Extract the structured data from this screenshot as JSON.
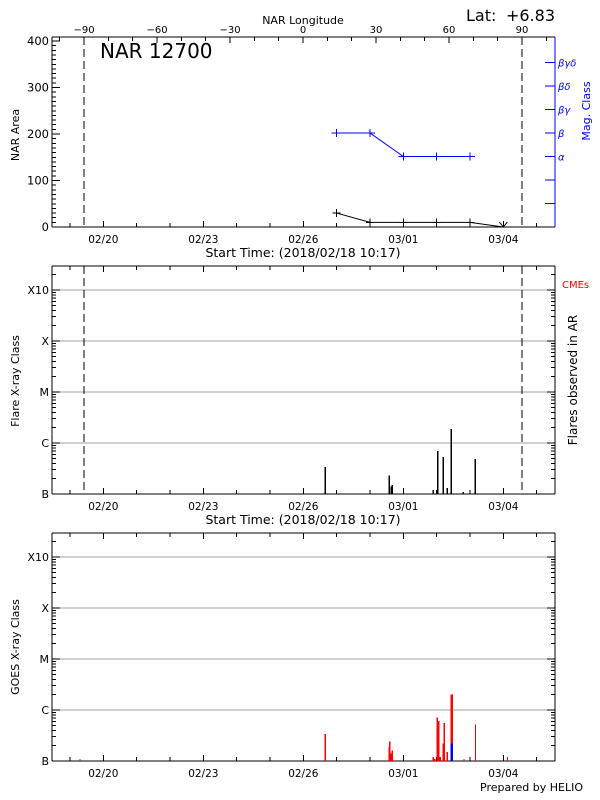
{
  "colors": {
    "axis": "#000000",
    "grid": "#a0a0a0",
    "mag_class": "#0000ff",
    "goes_bar": "#ff0000",
    "flare_bar": "#000000",
    "cme_legend": "#ff0000"
  },
  "figure": {
    "footer": "Prepared by HELIO"
  },
  "chart_data": [
    {
      "type": "line",
      "title": "NAR 12700",
      "annotation": {
        "label": "Lat:",
        "value": "+6.83"
      },
      "top_axis": {
        "label": "NAR Longitude",
        "tick_labels": [
          "-90",
          "-60",
          "-30",
          "0",
          "30",
          "60",
          "90"
        ]
      },
      "xlabel": "Start Time: (2018/02/18 10:17)",
      "x_tick_labels": [
        "02/20",
        "02/23",
        "02/26",
        "03/01",
        "03/04"
      ],
      "ylabel": "NAR Area",
      "ylim": [
        0,
        400
      ],
      "yticks": [
        0,
        100,
        200,
        300,
        400
      ],
      "y2label": "Mag. Class",
      "y2_tick_labels": [
        "α",
        "β",
        "βγ",
        "βδ",
        "βγδ"
      ],
      "limb_crossings": [
        "02/19 10:00",
        "03/04 13:30"
      ],
      "grid": false,
      "series": [
        {
          "name": "NAR Area",
          "color": "#000000",
          "x": [
            "02/27 00:00",
            "02/28 00:00",
            "03/01 00:00",
            "03/02 00:00",
            "03/03 00:00",
            "03/04 00:00"
          ],
          "values": [
            30,
            10,
            10,
            10,
            10,
            0
          ],
          "markers": [
            "+",
            "+",
            "+",
            "+",
            "+",
            "v"
          ]
        },
        {
          "name": "Mag. Class",
          "color": "#0000ff",
          "x": [
            "02/27 00:00",
            "02/28 00:00",
            "03/01 00:00",
            "03/02 00:00",
            "03/03 00:00"
          ],
          "values": [
            "β",
            "β",
            "α",
            "α",
            "α"
          ]
        }
      ]
    },
    {
      "type": "bar",
      "ylabel": "Flare X-ray Class",
      "y2label": "Flares observed in AR",
      "legend": [
        {
          "label": "CMEs",
          "color": "#ff0000"
        }
      ],
      "ytick_labels": [
        "B",
        "C",
        "M",
        "X",
        "X10"
      ],
      "xlabel": "Start Time: (2018/02/18 10:17)",
      "x_tick_labels": [
        "02/20",
        "02/23",
        "02/26",
        "03/01",
        "03/04"
      ],
      "limb_crossings": [
        "02/19 10:00",
        "03/04 13:30"
      ],
      "grid": true,
      "bar_color": "#000000",
      "events": [
        {
          "time": "02/26 15:50",
          "class": "B3.4"
        },
        {
          "time": "02/28 13:55",
          "class": "B2.3"
        },
        {
          "time": "02/28 15:20",
          "class": "B1.4"
        },
        {
          "time": "02/28 16:05",
          "class": "B1.5"
        },
        {
          "time": "03/01 21:40",
          "class": "B1.2"
        },
        {
          "time": "03/02 00:50",
          "class": "B6.9"
        },
        {
          "time": "03/02 04:50",
          "class": "B5.3"
        },
        {
          "time": "03/02 07:40",
          "class": "B1.3"
        },
        {
          "time": "03/02 10:35",
          "class": "C1.9"
        },
        {
          "time": "03/02 19:10",
          "class": "B1.1"
        },
        {
          "time": "03/03 03:50",
          "class": "B4.9"
        }
      ]
    },
    {
      "type": "bar",
      "ylabel": "GOES X-ray Class",
      "ytick_labels": [
        "B",
        "C",
        "M",
        "X",
        "X10"
      ],
      "x_tick_labels": [
        "02/20",
        "02/23",
        "02/26",
        "03/01",
        "03/04"
      ],
      "grid": true,
      "bar_color": "#ff0000",
      "events": [
        {
          "time": "02/19 07:10",
          "class": "B1.1"
        },
        {
          "time": "02/26 15:50",
          "class": "B3.4"
        },
        {
          "time": "02/28 13:50",
          "class": "B1.9"
        },
        {
          "time": "02/28 14:20",
          "class": "B2.4"
        },
        {
          "time": "02/28 15:15",
          "class": "B1.4"
        },
        {
          "time": "02/28 16:00",
          "class": "B1.6"
        },
        {
          "time": "03/01 21:40",
          "class": "B1.2"
        },
        {
          "time": "03/01 22:30",
          "class": "B1.1"
        },
        {
          "time": "03/02 00:30",
          "class": "B7.1"
        },
        {
          "time": "03/02 01:30",
          "class": "B6.1"
        },
        {
          "time": "03/02 02:30",
          "class": "B1.2"
        },
        {
          "time": "03/02 04:50",
          "class": "B2.2"
        },
        {
          "time": "03/02 05:30",
          "class": "B5.5"
        },
        {
          "time": "03/02 07:40",
          "class": "B1.5"
        },
        {
          "time": "03/02 10:35",
          "class": "C2.0"
        },
        {
          "time": "03/02 11:20",
          "class": "C2.0"
        },
        {
          "time": "03/02 19:40",
          "class": "B1.1"
        },
        {
          "time": "03/03 04:00",
          "class": "B5.2"
        },
        {
          "time": "03/04 03:00",
          "class": "B1.2"
        }
      ],
      "overlay": [
        {
          "time": "03/02 10:35",
          "class": "B2.2",
          "color": "#0000ff"
        },
        {
          "time": "03/02 11:20",
          "class": "B2.2",
          "color": "#0000ff"
        }
      ]
    }
  ]
}
